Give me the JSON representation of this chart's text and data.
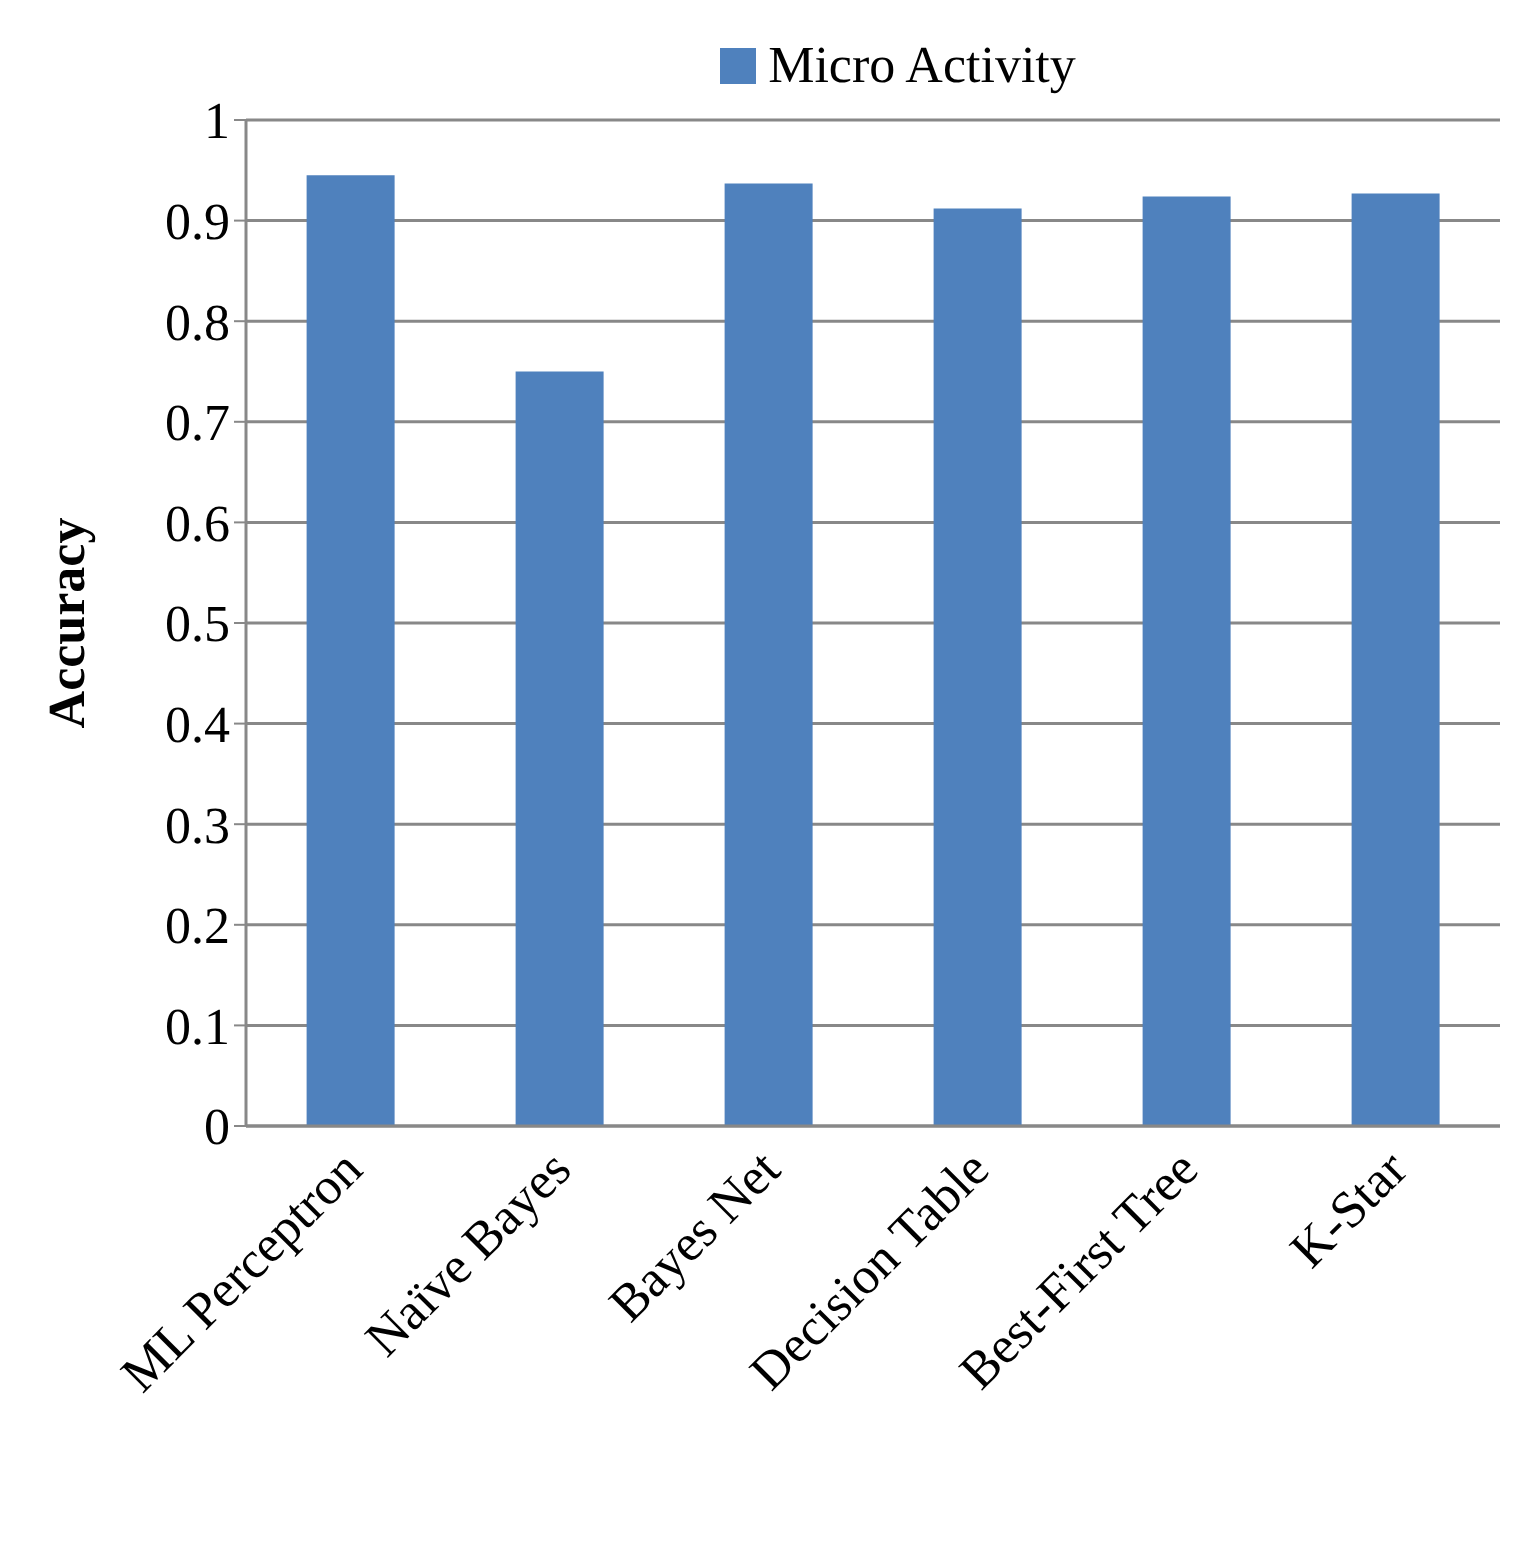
{
  "chart_data": {
    "type": "bar",
    "ylabel": "Accuracy",
    "categories": [
      "ML Perceptron",
      "Naïve Bayes",
      "Bayes Net",
      "Decision Table",
      "Best-First Tree",
      "K-Star"
    ],
    "series": [
      {
        "name": "Micro Activity",
        "color": "#4f81bd",
        "values": [
          0.945,
          0.75,
          0.937,
          0.912,
          0.924,
          0.927
        ]
      }
    ],
    "ylim": [
      0,
      1
    ],
    "yticks": [
      0,
      0.1,
      0.2,
      0.3,
      0.4,
      0.5,
      0.6,
      0.7,
      0.8,
      0.9,
      1
    ],
    "grid": "y",
    "legend": "top"
  }
}
